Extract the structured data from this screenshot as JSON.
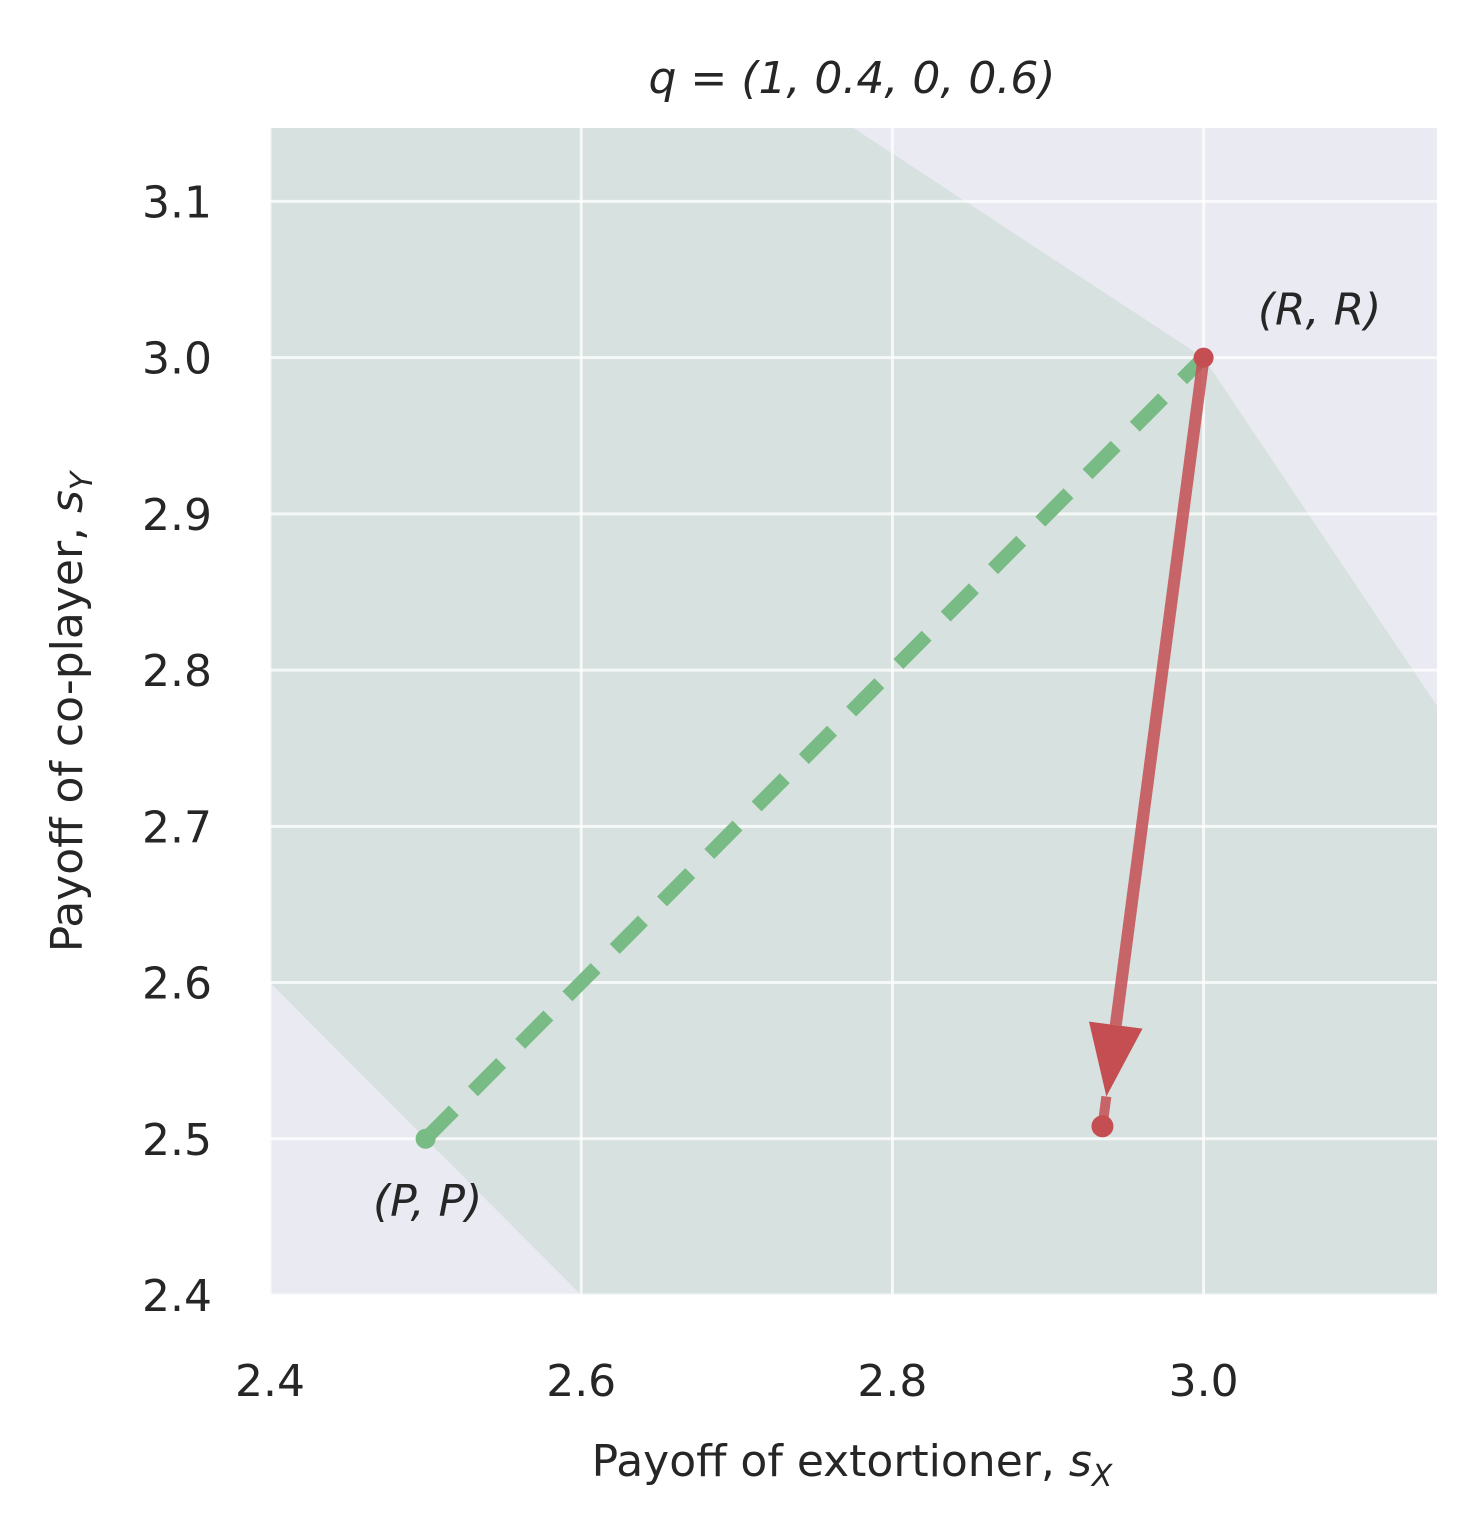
{
  "chart_data": {
    "type": "line",
    "title": "q = (1, 0.4, 0, 0.6)",
    "xlabel": "Payoff of extortioner, ",
    "xlabel_var": "s",
    "xlabel_sub": "X",
    "ylabel": "Payoff of co-player, ",
    "ylabel_var": "s",
    "ylabel_sub": "Y",
    "xlim": [
      2.4,
      3.15
    ],
    "ylim": [
      2.4,
      3.147
    ],
    "xticks": [
      2.4,
      2.6,
      2.8,
      3.0
    ],
    "xtick_labels": [
      "2.4",
      "2.6",
      "2.8",
      "3.0"
    ],
    "yticks": [
      2.4,
      2.5,
      2.6,
      2.7,
      2.8,
      2.9,
      3.0,
      3.1
    ],
    "ytick_labels": [
      "2.4",
      "2.5",
      "2.6",
      "2.7",
      "2.8",
      "2.9",
      "3.0",
      "3.1"
    ],
    "grid": true,
    "feasible_region": [
      [
        2.4,
        2.6
      ],
      [
        2.4,
        3.147
      ],
      [
        2.775,
        3.147
      ],
      [
        3.0,
        3.0
      ],
      [
        3.15,
        2.777
      ],
      [
        3.15,
        2.4
      ],
      [
        2.6,
        2.4
      ]
    ],
    "series": [
      {
        "kind": "dashed-line",
        "color": "#78bb84",
        "points": [
          [
            2.5,
            2.5
          ],
          [
            3.0,
            3.0
          ]
        ]
      },
      {
        "kind": "arrow",
        "color": "#c44e52",
        "points": [
          [
            3.0,
            3.0
          ],
          [
            2.935,
            2.508
          ]
        ]
      }
    ],
    "annotations": [
      {
        "text": "(R, R)",
        "x": 3.0,
        "y": 3.0
      },
      {
        "text": "(P, P)",
        "x": 2.5,
        "y": 2.5
      }
    ],
    "colors": {
      "background": "#eaeaf2",
      "region": "#d7e1df",
      "grid": "#ffffff",
      "green": "#78bb84",
      "red": "#c44e52"
    }
  }
}
